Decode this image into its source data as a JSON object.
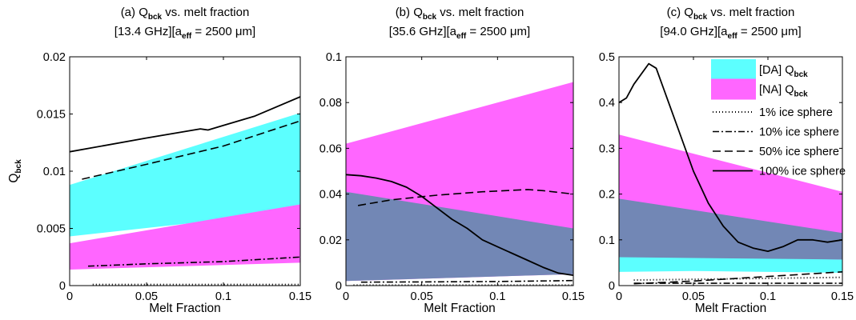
{
  "chart_data": [
    {
      "type": "area",
      "title": {
        "prefix": "(a) Q",
        "sub": "bck",
        "suffix": " vs. melt fraction"
      },
      "subtitle": {
        "a": "[13.4 GHz][a",
        "sub": "eff",
        "b": " = 2500  μm]"
      },
      "xlabel": "Melt Fraction",
      "ylabel": {
        "main": "Q",
        "sub": "bck"
      },
      "xlim": [
        0,
        0.15
      ],
      "ylim": [
        0,
        0.02
      ],
      "xticks": [
        "0",
        "0.05",
        "0.1",
        "0.15"
      ],
      "xtick_values": [
        0,
        0.05,
        0.1,
        0.15
      ],
      "yticks": [
        "0",
        "0.005",
        "0.01",
        "0.015",
        "0.02"
      ],
      "ytick_values": [
        0,
        0.005,
        0.01,
        0.015,
        0.02
      ],
      "areas": [
        {
          "series": "[DA] Q_bck",
          "color": "#5cffff",
          "x": [
            0,
            0.15
          ],
          "lower": [
            0.0043,
            0.0065
          ],
          "upper": [
            0.0088,
            0.0151
          ]
        },
        {
          "series": "[NA] Q_bck",
          "color": "#ff66ff",
          "x": [
            0,
            0.15
          ],
          "lower": [
            0.0014,
            0.002
          ],
          "upper": [
            0.0037,
            0.0071
          ]
        }
      ],
      "lines": [
        {
          "series": "1% ice sphere",
          "dash": "1,3",
          "width": 2,
          "x": [
            0.015,
            0.15
          ],
          "y": [
            0.0001,
            0.0001
          ]
        },
        {
          "series": "10% ice sphere",
          "dash": "8,3,2,3",
          "width": 1.6,
          "x": [
            0.012,
            0.05,
            0.1,
            0.15
          ],
          "y": [
            0.0017,
            0.0019,
            0.0021,
            0.0025
          ]
        },
        {
          "series": "50% ice sphere",
          "dash": "10,5",
          "width": 1.6,
          "x": [
            0.008,
            0.05,
            0.1,
            0.15
          ],
          "y": [
            0.0093,
            0.0106,
            0.0122,
            0.0144
          ]
        },
        {
          "series": "100% ice sphere",
          "dash": "",
          "width": 1.8,
          "x": [
            0,
            0.05,
            0.085,
            0.09,
            0.1,
            0.12,
            0.15
          ],
          "y": [
            0.0117,
            0.0129,
            0.0137,
            0.0136,
            0.014,
            0.0148,
            0.0165
          ]
        }
      ]
    },
    {
      "type": "area",
      "title": {
        "prefix": "(b) Q",
        "sub": "bck",
        "suffix": " vs. melt fraction"
      },
      "subtitle": {
        "a": "[35.6 GHz][a",
        "sub": "eff",
        "b": " = 2500  μm]"
      },
      "xlabel": "Melt Fraction",
      "xlim": [
        0,
        0.15
      ],
      "ylim": [
        0,
        0.1
      ],
      "xticks": [
        "0",
        "0.05",
        "0.1",
        "0.15"
      ],
      "xtick_values": [
        0,
        0.05,
        0.1,
        0.15
      ],
      "yticks": [
        "0",
        "0.02",
        "0.04",
        "0.06",
        "0.08",
        "0.1"
      ],
      "ytick_values": [
        0,
        0.02,
        0.04,
        0.06,
        0.08,
        0.1
      ],
      "areas": [
        {
          "series": "[NA] Q_bck",
          "color": "#ff66ff",
          "x": [
            0,
            0.15
          ],
          "lower": [
            0.002,
            0.005
          ],
          "upper": [
            0.062,
            0.089
          ]
        },
        {
          "series": "[DA] Q_bck",
          "color": "#7287b5",
          "x": [
            0,
            0.15
          ],
          "lower": [
            0.002,
            0.005
          ],
          "upper": [
            0.041,
            0.025
          ]
        }
      ],
      "lines": [
        {
          "series": "1% ice sphere",
          "dash": "1,3",
          "width": 2,
          "x": [
            0.005,
            0.15
          ],
          "y": [
            0.0002,
            0.0002
          ]
        },
        {
          "series": "10% ice sphere",
          "dash": "8,3,2,3",
          "width": 1.6,
          "x": [
            0.01,
            0.05,
            0.1,
            0.15
          ],
          "y": [
            0.0015,
            0.0016,
            0.0018,
            0.0022
          ]
        },
        {
          "series": "50% ice sphere",
          "dash": "10,5",
          "width": 1.6,
          "x": [
            0.008,
            0.03,
            0.06,
            0.09,
            0.12,
            0.13,
            0.15
          ],
          "y": [
            0.035,
            0.0375,
            0.0395,
            0.041,
            0.042,
            0.0415,
            0.04
          ]
        },
        {
          "series": "100% ice sphere",
          "dash": "",
          "width": 1.8,
          "x": [
            0,
            0.01,
            0.02,
            0.03,
            0.04,
            0.05,
            0.06,
            0.07,
            0.08,
            0.09,
            0.1,
            0.11,
            0.12,
            0.13,
            0.14,
            0.15
          ],
          "y": [
            0.0485,
            0.048,
            0.047,
            0.0455,
            0.043,
            0.039,
            0.034,
            0.029,
            0.025,
            0.02,
            0.017,
            0.014,
            0.011,
            0.008,
            0.0055,
            0.0045
          ]
        }
      ]
    },
    {
      "type": "area",
      "title": {
        "prefix": "(c) Q",
        "sub": "bck",
        "suffix": " vs. melt fraction"
      },
      "subtitle": {
        "a": "[94.0 GHz][a",
        "sub": "eff",
        "b": " = 2500  μm]"
      },
      "xlabel": "Melt Fraction",
      "xlim": [
        0,
        0.15
      ],
      "ylim": [
        0,
        0.5
      ],
      "xticks": [
        "0",
        "0.05",
        "0.1",
        "0.15"
      ],
      "xtick_values": [
        0,
        0.05,
        0.1,
        0.15
      ],
      "yticks": [
        "0",
        "0.1",
        "0.2",
        "0.3",
        "0.4",
        "0.5"
      ],
      "ytick_values": [
        0,
        0.1,
        0.2,
        0.3,
        0.4,
        0.5
      ],
      "areas": [
        {
          "series": "[NA] Q_bck",
          "color": "#ff66ff",
          "x": [
            0,
            0.15
          ],
          "lower": [
            0.06,
            0.035
          ],
          "upper": [
            0.33,
            0.205
          ]
        },
        {
          "series": "[DA] Q_bck",
          "color": "#5cffff",
          "x": [
            0,
            0.05,
            0.1,
            0.15
          ],
          "lower": [
            0.03,
            0.032,
            0.03,
            0.028
          ],
          "upper": [
            0.062,
            0.068,
            0.06,
            0.057
          ]
        },
        {
          "series": "[DA] Q_bck",
          "color": "#7287b5",
          "x": [
            0,
            0.15
          ],
          "lower": [
            0.062,
            0.057
          ],
          "upper": [
            0.19,
            0.115
          ]
        }
      ],
      "lines": [
        {
          "series": "1% ice sphere",
          "dash": "1,3",
          "width": 2,
          "x": [
            0.01,
            0.15
          ],
          "y": [
            0.012,
            0.018
          ]
        },
        {
          "series": "10% ice sphere",
          "dash": "8,3,2,3",
          "width": 1.6,
          "x": [
            0.01,
            0.15
          ],
          "y": [
            0.005,
            0.005
          ]
        },
        {
          "series": "50% ice sphere",
          "dash": "10,5",
          "width": 1.6,
          "x": [
            0.01,
            0.05,
            0.1,
            0.15
          ],
          "y": [
            0.004,
            0.01,
            0.02,
            0.03
          ]
        },
        {
          "series": "100% ice sphere",
          "dash": "",
          "width": 1.8,
          "x": [
            0,
            0.005,
            0.01,
            0.02,
            0.025,
            0.03,
            0.04,
            0.05,
            0.06,
            0.07,
            0.08,
            0.09,
            0.1,
            0.11,
            0.12,
            0.13,
            0.14,
            0.15
          ],
          "y": [
            0.4,
            0.41,
            0.44,
            0.485,
            0.475,
            0.43,
            0.34,
            0.25,
            0.18,
            0.13,
            0.095,
            0.082,
            0.075,
            0.085,
            0.1,
            0.1,
            0.095,
            0.1
          ]
        }
      ],
      "legend": {
        "placement": "top-right",
        "entries": [
          {
            "kind": "patch",
            "color": "#5cffff",
            "text": "[DA] Q",
            "sub": "bck"
          },
          {
            "kind": "patch",
            "color": "#ff66ff",
            "text": "[NA] Q",
            "sub": "bck"
          },
          {
            "kind": "line",
            "dash": "1,3",
            "width": 2,
            "text": "1% ice sphere"
          },
          {
            "kind": "line",
            "dash": "8,3,2,3",
            "width": 1.6,
            "text": "10% ice sphere"
          },
          {
            "kind": "line",
            "dash": "10,5",
            "width": 1.6,
            "text": "50% ice sphere"
          },
          {
            "kind": "line",
            "dash": "",
            "width": 1.8,
            "text": "100% ice sphere"
          }
        ]
      }
    }
  ]
}
